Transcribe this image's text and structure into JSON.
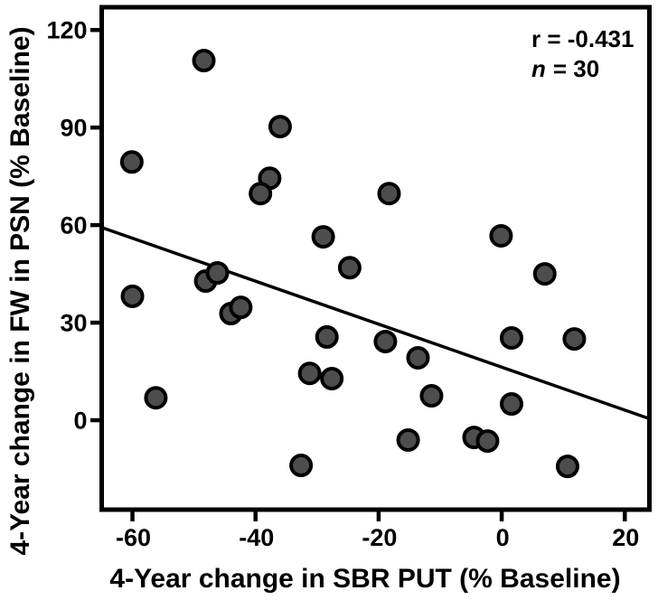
{
  "chart_data": {
    "type": "scatter",
    "title": "",
    "xlabel": "4-Year change in SBR PUT (% Baseline)",
    "ylabel": "4-Year change in FW in PSN (% Baseline)",
    "xlim": [
      -65,
      24
    ],
    "ylim": [
      -27.5,
      127
    ],
    "xticks": [
      -60,
      -40,
      -20,
      0,
      20
    ],
    "yticks": [
      0,
      30,
      60,
      90,
      120
    ],
    "grid": false,
    "legend": false,
    "annotation_r": "r = -0.431",
    "annotation_n_symbol": "n",
    "annotation_n_rest": "= 30",
    "stats": {
      "r": -0.431,
      "n": 30
    },
    "points": [
      [
        -48.4,
        110.6
      ],
      [
        -36.0,
        90.3
      ],
      [
        -60.1,
        79.4
      ],
      [
        -37.7,
        74.4
      ],
      [
        -39.2,
        69.7
      ],
      [
        -18.3,
        69.7
      ],
      [
        -29.0,
        56.4
      ],
      [
        -0.1,
        56.7
      ],
      [
        -24.7,
        46.9
      ],
      [
        7.0,
        45.0
      ],
      [
        -48.1,
        42.8
      ],
      [
        -46.2,
        45.3
      ],
      [
        -60.0,
        38.1
      ],
      [
        -44.0,
        32.8
      ],
      [
        -42.4,
        34.7
      ],
      [
        -28.4,
        25.6
      ],
      [
        1.6,
        25.3
      ],
      [
        11.8,
        25.0
      ],
      [
        -18.9,
        24.2
      ],
      [
        -13.6,
        19.2
      ],
      [
        -31.2,
        14.4
      ],
      [
        -27.6,
        12.8
      ],
      [
        -11.4,
        7.5
      ],
      [
        -56.2,
        6.9
      ],
      [
        1.6,
        5.0
      ],
      [
        -15.2,
        -6.1
      ],
      [
        -4.5,
        -5.3
      ],
      [
        -2.3,
        -6.4
      ],
      [
        -32.6,
        -13.9
      ],
      [
        10.7,
        -14.2
      ]
    ],
    "trendline": {
      "x1": -64.9,
      "y1": 59.2,
      "x2": 23.8,
      "y2": 0.6
    },
    "marker": {
      "radius": 11,
      "stroke_width": 4
    },
    "colors": {
      "marker_fill": "#4d4d4d",
      "marker_stroke": "#000000",
      "trend_line": "#000000",
      "frame": "#000000",
      "text": "#000000",
      "background": "#ffffff"
    }
  }
}
